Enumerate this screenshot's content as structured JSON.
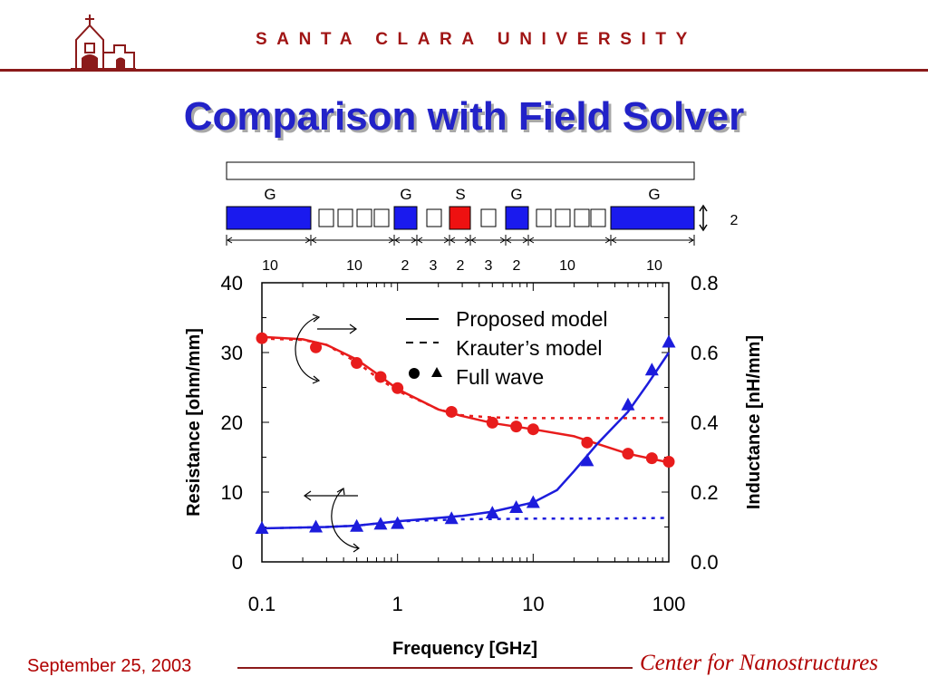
{
  "header": {
    "university": "SANTA CLARA UNIVERSITY",
    "title": "Comparison with Field Solver"
  },
  "cross_section": {
    "top_labels": [
      "G",
      "G",
      "S",
      "G",
      "G"
    ],
    "spacings": [
      "10",
      "10",
      "2",
      "3",
      "2",
      "3",
      "2",
      "10",
      "10"
    ],
    "height_label": "2",
    "conductor_color": "#1a1aee",
    "signal_color": "#ee1111"
  },
  "legend": {
    "proposed": "Proposed model",
    "krauter": "Krauter’s model",
    "fullwave": "Full wave"
  },
  "chart_data": {
    "type": "line",
    "xlabel": "Frequency [GHz]",
    "ylabel_left": "Resistance [ohm/mm]",
    "ylabel_right": "Inductance [nH/mm]",
    "x_scale": "log",
    "xlim": [
      0.1,
      100
    ],
    "ylim_left": [
      0,
      40
    ],
    "ylim_right": [
      0.0,
      0.8
    ],
    "x_ticks": [
      "0.1",
      "1",
      "10",
      "100"
    ],
    "y_ticks_left": [
      "0",
      "10",
      "20",
      "30",
      "40"
    ],
    "y_ticks_right": [
      "0.0",
      "0.2",
      "0.4",
      "0.6",
      "0.8"
    ],
    "colors": {
      "resistance": "#e81c1c",
      "inductance": "#1c1cdc"
    },
    "series": [
      {
        "name": "Proposed model",
        "style": "solid",
        "axis": "right",
        "color": "#e81c1c",
        "x": [
          0.1,
          0.2,
          0.3,
          0.5,
          0.7,
          1,
          2,
          3,
          5,
          10,
          20,
          50,
          100
        ],
        "y": [
          0.645,
          0.638,
          0.622,
          0.58,
          0.54,
          0.495,
          0.437,
          0.418,
          0.398,
          0.38,
          0.36,
          0.31,
          0.285
        ]
      },
      {
        "name": "Krauter’s model",
        "style": "dashed",
        "axis": "right",
        "color": "#e81c1c",
        "x": [
          0.1,
          0.2,
          0.3,
          0.5,
          0.7,
          1,
          1.5,
          2,
          3,
          5,
          10,
          100
        ],
        "y": [
          0.64,
          0.636,
          0.622,
          0.572,
          0.53,
          0.49,
          0.46,
          0.437,
          0.42,
          0.414,
          0.412,
          0.412
        ]
      },
      {
        "name": "Full wave",
        "style": "markers-circle",
        "axis": "right",
        "color": "#e81c1c",
        "x": [
          0.1,
          0.25,
          0.5,
          0.75,
          1,
          2.5,
          5,
          7.5,
          10,
          25,
          50,
          75,
          100
        ],
        "y": [
          0.641,
          0.615,
          0.57,
          0.53,
          0.498,
          0.43,
          0.399,
          0.388,
          0.38,
          0.342,
          0.31,
          0.297,
          0.287
        ]
      },
      {
        "name": "Proposed model",
        "style": "solid",
        "axis": "left",
        "color": "#1c1cdc",
        "x": [
          0.1,
          0.3,
          0.5,
          1,
          2,
          3,
          5,
          10,
          15,
          20,
          30,
          50,
          70,
          100
        ],
        "y": [
          4.8,
          5.0,
          5.2,
          5.8,
          6.3,
          6.6,
          7.2,
          8.5,
          10.3,
          13.0,
          17.0,
          21.5,
          25.5,
          30.0
        ]
      },
      {
        "name": "Krauter’s model",
        "style": "dashed",
        "axis": "left",
        "color": "#1c1cdc",
        "x": [
          0.1,
          0.3,
          0.5,
          1,
          3,
          10,
          30,
          100
        ],
        "y": [
          4.8,
          5.0,
          5.2,
          5.8,
          6.1,
          6.2,
          6.2,
          6.3
        ]
      },
      {
        "name": "Full wave",
        "style": "markers-triangle",
        "axis": "left",
        "color": "#1c1cdc",
        "x": [
          0.1,
          0.25,
          0.5,
          0.75,
          1,
          2.5,
          5,
          7.5,
          10,
          25,
          50,
          75,
          100
        ],
        "y": [
          4.8,
          5.0,
          5.1,
          5.4,
          5.5,
          6.2,
          7.0,
          7.8,
          8.5,
          14.5,
          22.5,
          27.5,
          31.5
        ]
      }
    ]
  },
  "footer": {
    "date": "September 25, 2003",
    "center": "Center for Nanostructures"
  }
}
